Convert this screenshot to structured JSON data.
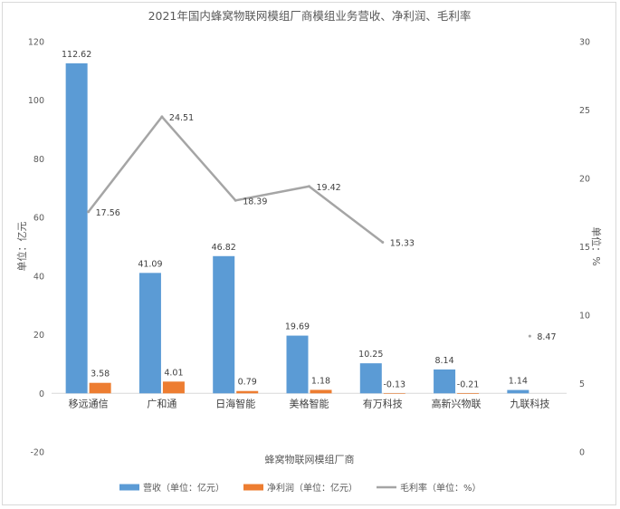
{
  "chart_data": {
    "type": "bar",
    "title": "2021年国内蜂窝物联网模组厂商模组业务营收、净利润、毛利率",
    "xlabel": "蜂窝物联网模组厂商",
    "ylabel": "单位：亿元",
    "y2label": "单位：%",
    "categories": [
      "移远通信",
      "广和通",
      "日海智能",
      "美格智能",
      "有万科技",
      "高新兴物联",
      "九联科技"
    ],
    "ylim": [
      -20,
      120
    ],
    "yticks": [
      -20,
      0,
      20,
      40,
      60,
      80,
      100,
      120
    ],
    "y2lim": [
      0,
      30
    ],
    "y2ticks": [
      0,
      5,
      10,
      15,
      20,
      25,
      30
    ],
    "grid": false,
    "legend_position": "bottom",
    "series": [
      {
        "name": "营收（单位：亿元）",
        "type": "bar",
        "axis": "left",
        "color": "#5b9bd5",
        "values": [
          112.62,
          41.09,
          46.82,
          19.69,
          10.25,
          8.14,
          1.14
        ],
        "labels": [
          "112.62",
          "41.09",
          "46.82",
          "19.69",
          "10.25",
          "8.14",
          "1.14"
        ]
      },
      {
        "name": "净利润（单位：亿元）",
        "type": "bar",
        "axis": "left",
        "color": "#ed7d31",
        "values": [
          3.58,
          4.01,
          0.79,
          1.18,
          -0.13,
          -0.21,
          null
        ],
        "labels": [
          "3.58",
          "4.01",
          "0.79",
          "1.18",
          "-0.13",
          "-0.21",
          ""
        ]
      },
      {
        "name": "毛利率（单位：%）",
        "type": "line",
        "axis": "right",
        "color": "#a5a5a5",
        "values": [
          17.56,
          24.51,
          18.39,
          19.42,
          15.33,
          null,
          8.47
        ],
        "labels": [
          "17.56",
          "24.51",
          "18.39",
          "19.42",
          "15.33",
          "",
          "8.47"
        ]
      }
    ]
  }
}
